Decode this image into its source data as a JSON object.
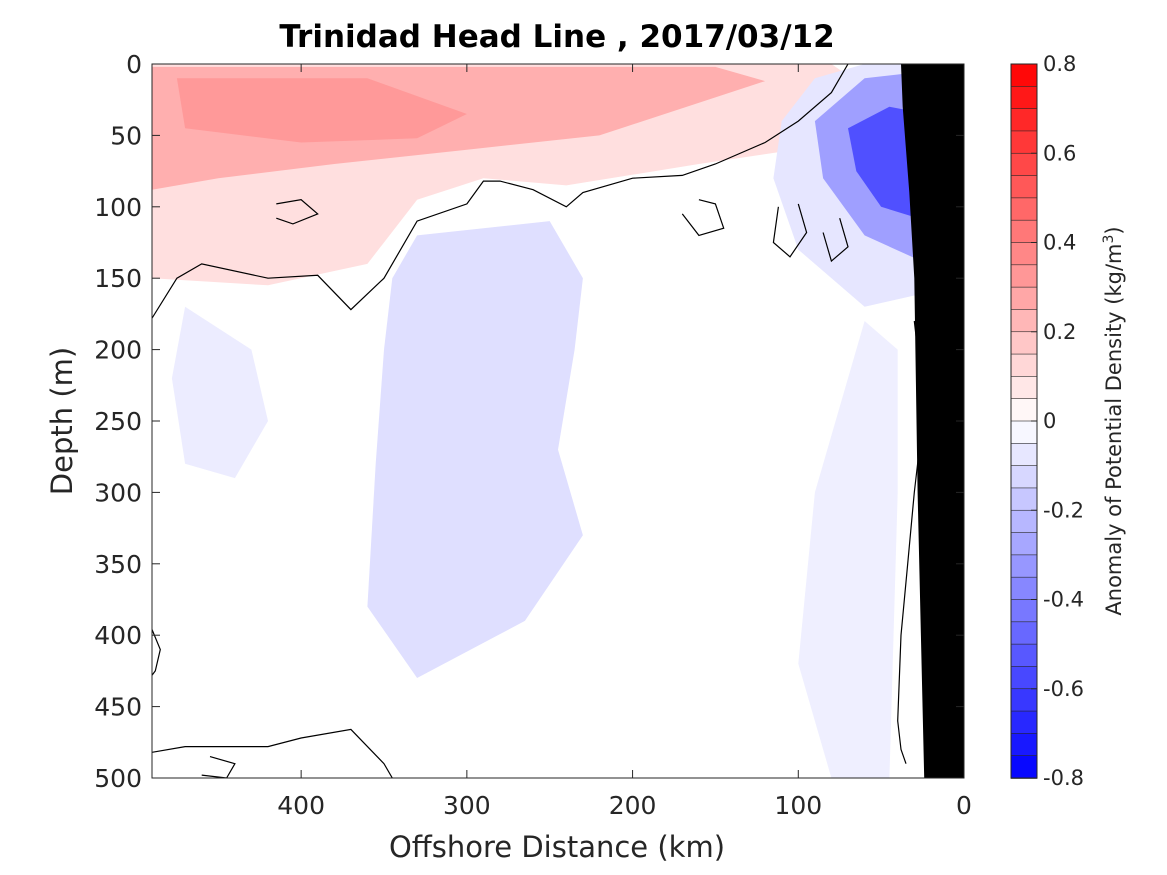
{
  "chart_data": {
    "type": "contour",
    "title": "Trinidad Head Line , 2017/03/12",
    "xlabel": "Offshore Distance (km)",
    "ylabel": "Depth (m)",
    "xlim": [
      490,
      0
    ],
    "x_reversed": true,
    "ylim": [
      0,
      500
    ],
    "y_reversed": true,
    "xticks": [
      400,
      300,
      200,
      100,
      0
    ],
    "yticks": [
      0,
      50,
      100,
      150,
      200,
      250,
      300,
      350,
      400,
      450,
      500
    ],
    "colorbar": {
      "label_main": "Anomaly of Potential Density (kg/m",
      "label_sup": "3",
      "label_close": ")",
      "range": [
        -0.8,
        0.8
      ],
      "step": 0.05,
      "ticks": [
        0.8,
        0.6,
        0.4,
        0.2,
        0,
        -0.2,
        -0.4,
        -0.6,
        -0.8
      ],
      "tick_labels": [
        "0.8",
        "0.6",
        "0.4",
        "0.2",
        "0",
        "-0.2",
        "-0.4",
        "-0.6",
        "-0.8"
      ],
      "colormap": "blue-white-red"
    },
    "colors": {
      "positive": "#ff0000",
      "negative": "#0000ff",
      "zero": "#ffffff",
      "bathymetry": "#000000",
      "contour_line": "#000000"
    },
    "fields": [
      {
        "name": "warm-surface-layer",
        "value": 0.1,
        "polygon": [
          [
            490,
            0
          ],
          [
            80,
            0
          ],
          [
            55,
            20
          ],
          [
            90,
            58
          ],
          [
            160,
            70
          ],
          [
            240,
            85
          ],
          [
            290,
            80
          ],
          [
            330,
            95
          ],
          [
            360,
            140
          ],
          [
            420,
            155
          ],
          [
            490,
            150
          ]
        ]
      },
      {
        "name": "warm-surface-core",
        "value": 0.25,
        "polygon": [
          [
            490,
            2
          ],
          [
            150,
            2
          ],
          [
            120,
            12
          ],
          [
            220,
            50
          ],
          [
            300,
            60
          ],
          [
            380,
            70
          ],
          [
            450,
            80
          ],
          [
            490,
            88
          ]
        ]
      },
      {
        "name": "warm-surface-max",
        "value": 0.32,
        "polygon": [
          [
            475,
            10
          ],
          [
            360,
            10
          ],
          [
            300,
            35
          ],
          [
            330,
            52
          ],
          [
            400,
            55
          ],
          [
            470,
            45
          ]
        ]
      },
      {
        "name": "cold-upwelling-edge",
        "value": -0.08,
        "polygon": [
          [
            110,
            40
          ],
          [
            90,
            10
          ],
          [
            60,
            0
          ],
          [
            22,
            0
          ],
          [
            22,
            160
          ],
          [
            60,
            170
          ],
          [
            100,
            130
          ],
          [
            115,
            80
          ]
        ]
      },
      {
        "name": "cold-upwelling-mid",
        "value": -0.3,
        "polygon": [
          [
            90,
            40
          ],
          [
            60,
            10
          ],
          [
            22,
            5
          ],
          [
            22,
            140
          ],
          [
            60,
            120
          ],
          [
            85,
            80
          ]
        ]
      },
      {
        "name": "cold-upwelling-core",
        "value": -0.55,
        "polygon": [
          [
            70,
            45
          ],
          [
            45,
            30
          ],
          [
            22,
            35
          ],
          [
            22,
            110
          ],
          [
            50,
            100
          ],
          [
            65,
            75
          ]
        ]
      },
      {
        "name": "cold-mid-depth-blob",
        "value": -0.1,
        "polygon": [
          [
            330,
            120
          ],
          [
            250,
            110
          ],
          [
            230,
            150
          ],
          [
            235,
            200
          ],
          [
            245,
            270
          ],
          [
            230,
            330
          ],
          [
            265,
            390
          ],
          [
            330,
            430
          ],
          [
            360,
            380
          ],
          [
            355,
            280
          ],
          [
            350,
            200
          ],
          [
            345,
            150
          ]
        ]
      },
      {
        "name": "cold-west-blob",
        "value": -0.06,
        "polygon": [
          [
            470,
            170
          ],
          [
            430,
            200
          ],
          [
            420,
            250
          ],
          [
            440,
            290
          ],
          [
            470,
            280
          ],
          [
            478,
            220
          ]
        ]
      },
      {
        "name": "cold-nearshore-band",
        "value": -0.05,
        "polygon": [
          [
            60,
            180
          ],
          [
            90,
            300
          ],
          [
            100,
            420
          ],
          [
            80,
            500
          ],
          [
            45,
            500
          ],
          [
            40,
            300
          ],
          [
            40,
            200
          ]
        ]
      }
    ],
    "zero_contours": [
      [
        [
          490,
          178
        ],
        [
          475,
          150
        ],
        [
          460,
          140
        ],
        [
          420,
          150
        ],
        [
          390,
          148
        ],
        [
          370,
          172
        ],
        [
          350,
          150
        ],
        [
          330,
          110
        ],
        [
          300,
          98
        ],
        [
          290,
          82
        ],
        [
          280,
          82
        ],
        [
          260,
          88
        ],
        [
          240,
          100
        ],
        [
          230,
          90
        ],
        [
          200,
          80
        ],
        [
          170,
          78
        ],
        [
          150,
          70
        ],
        [
          120,
          55
        ],
        [
          100,
          40
        ],
        [
          80,
          20
        ],
        [
          70,
          0
        ]
      ],
      [
        [
          22,
          0
        ],
        [
          22,
          2
        ]
      ],
      [
        [
          30,
          180
        ],
        [
          28,
          200
        ],
        [
          26,
          260
        ],
        [
          30,
          300
        ],
        [
          34,
          350
        ],
        [
          38,
          400
        ],
        [
          40,
          460
        ],
        [
          38,
          480
        ],
        [
          35,
          490
        ]
      ],
      [
        [
          490,
          482
        ],
        [
          470,
          478
        ],
        [
          420,
          478
        ],
        [
          400,
          472
        ],
        [
          370,
          466
        ],
        [
          350,
          490
        ],
        [
          345,
          500
        ]
      ],
      [
        [
          415,
          98
        ],
        [
          400,
          95
        ],
        [
          390,
          105
        ],
        [
          405,
          112
        ],
        [
          415,
          108
        ]
      ],
      [
        [
          160,
          95
        ],
        [
          150,
          98
        ],
        [
          145,
          115
        ],
        [
          160,
          120
        ],
        [
          170,
          105
        ]
      ],
      [
        [
          100,
          98
        ],
        [
          95,
          118
        ],
        [
          105,
          135
        ],
        [
          115,
          125
        ],
        [
          112,
          100
        ]
      ],
      [
        [
          75,
          108
        ],
        [
          70,
          128
        ],
        [
          80,
          138
        ],
        [
          85,
          118
        ]
      ],
      [
        [
          490,
          396
        ],
        [
          485,
          410
        ],
        [
          488,
          425
        ],
        [
          490,
          428
        ]
      ],
      [
        [
          455,
          485
        ],
        [
          440,
          490
        ],
        [
          445,
          500
        ],
        [
          460,
          498
        ]
      ]
    ],
    "bathymetry": [
      [
        24,
        500
      ],
      [
        28,
        300
      ],
      [
        30,
        150
      ],
      [
        33,
        90
      ],
      [
        35,
        60
      ],
      [
        37,
        30
      ],
      [
        38,
        0
      ],
      [
        0,
        0
      ],
      [
        0,
        500
      ]
    ]
  }
}
